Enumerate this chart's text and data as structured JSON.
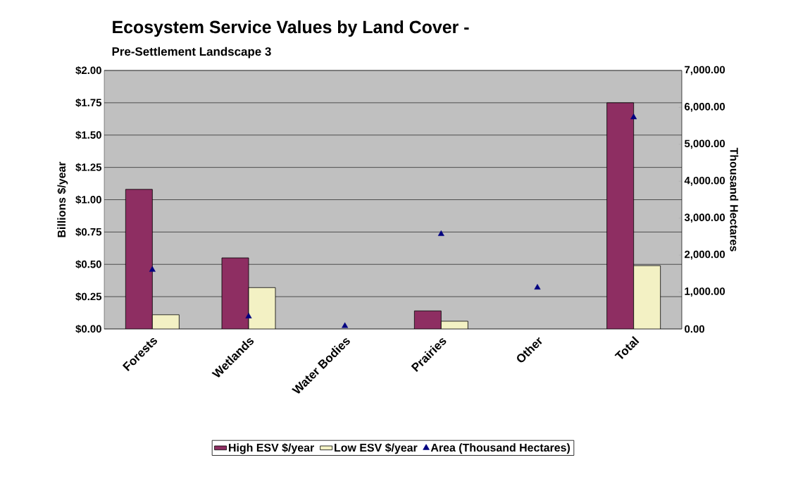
{
  "chart_data": {
    "type": "bar",
    "title": "Ecosystem Service Values by Land Cover -",
    "subtitle": "Pre-Settlement Landscape 3",
    "ylabel": "Billions $/year",
    "y2label": "Thousand Hectares",
    "categories": [
      "Forests",
      "Wetlands",
      "Water Bodies",
      "Prairies",
      "Other",
      "Total"
    ],
    "series": [
      {
        "name": "High ESV $/year",
        "color": "#8e2e62",
        "values": [
          1.08,
          0.55,
          null,
          0.14,
          null,
          1.75
        ]
      },
      {
        "name": "Low ESV $/year",
        "color": "#f3f1c4",
        "values": [
          0.11,
          0.32,
          null,
          0.06,
          null,
          0.49
        ]
      },
      {
        "name": "Area (Thousand Hectares)",
        "type": "scatter",
        "axis": "y2",
        "marker": "triangle",
        "color": "#000080",
        "values": [
          1600,
          340,
          80,
          2570,
          1120,
          5730
        ]
      }
    ],
    "ylim": [
      0,
      2
    ],
    "yticks": [
      {
        "value": 0,
        "label": "$0.00"
      },
      {
        "value": 0.25,
        "label": "$0.25"
      },
      {
        "value": 0.5,
        "label": "$0.50"
      },
      {
        "value": 0.75,
        "label": "$0.75"
      },
      {
        "value": 1,
        "label": "$1.00"
      },
      {
        "value": 1.25,
        "label": "$1.25"
      },
      {
        "value": 1.5,
        "label": "$1.50"
      },
      {
        "value": 1.75,
        "label": "$1.75"
      },
      {
        "value": 2,
        "label": "$2.00"
      }
    ],
    "y2lim": [
      0,
      7000
    ],
    "y2ticks": [
      {
        "value": 0,
        "label": "0.00"
      },
      {
        "value": 1000,
        "label": "1,000.00"
      },
      {
        "value": 2000,
        "label": "2,000.00"
      },
      {
        "value": 3000,
        "label": "3,000.00"
      },
      {
        "value": 4000,
        "label": "4,000.00"
      },
      {
        "value": 5000,
        "label": "5,000.00"
      },
      {
        "value": 6000,
        "label": "6,000.00"
      },
      {
        "value": 7000,
        "label": "7,000.00"
      }
    ],
    "grid": "y",
    "legend": "bottom"
  }
}
